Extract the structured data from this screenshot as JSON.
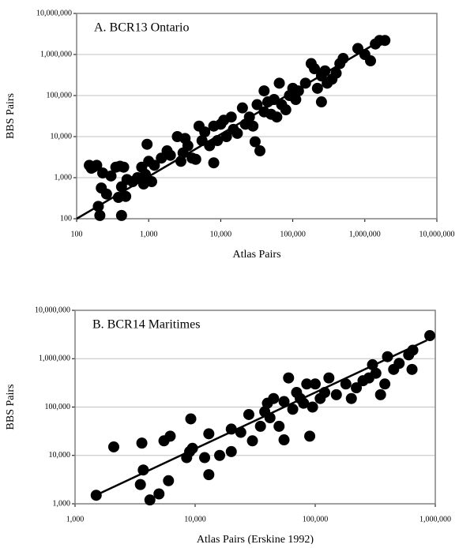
{
  "chart_data": [
    {
      "type": "scatter",
      "title": "A.  BCR13 Ontario",
      "x_label": "Atlas Pairs",
      "y_label": "BBS Pairs",
      "log_x": true,
      "log_y": true,
      "grid": true,
      "color": "#000000",
      "xlim": [
        100,
        10000000
      ],
      "ylim": [
        100,
        10000000
      ],
      "xticks": [
        100,
        {
          "value": 1000,
          "label": "1,000"
        },
        {
          "value": 10000,
          "label": "10,000"
        },
        {
          "value": 100000,
          "label": "100,000"
        },
        {
          "value": 1000000,
          "label": "1,000,000"
        },
        {
          "value": 10000000,
          "label": "10,000,000"
        }
      ],
      "yticks": [
        100,
        {
          "value": 1000,
          "label": "1,000"
        },
        {
          "value": 10000,
          "label": "10,000"
        },
        {
          "value": 100000,
          "label": "100,000"
        },
        {
          "value": 1000000,
          "label": "1,000,000"
        },
        {
          "value": 10000000,
          "label": "10,000,000"
        }
      ],
      "x": [
        150,
        170,
        190,
        160,
        200,
        220,
        210,
        230,
        260,
        300,
        350,
        400,
        420,
        380,
        450,
        420,
        500,
        480,
        600,
        700,
        800,
        900,
        950,
        1000,
        850,
        1100,
        1200,
        1500,
        1800,
        2000,
        2500,
        2800,
        3000,
        3200,
        3500,
        4000,
        4500,
        5000,
        5500,
        6000,
        7000,
        8000,
        8000,
        9000,
        10000,
        11000,
        12000,
        14000,
        15000,
        17000,
        20000,
        22000,
        25000,
        28000,
        30000,
        32000,
        35000,
        40000,
        40000,
        45000,
        50000,
        55000,
        60000,
        65000,
        70000,
        80000,
        90000,
        100000,
        110000,
        120000,
        150000,
        180000,
        200000,
        220000,
        250000,
        250000,
        280000,
        300000,
        350000,
        400000,
        450000,
        500000,
        800000,
        1000000,
        1200000,
        1400000,
        1600000,
        1900000
      ],
      "y": [
        2000,
        1800,
        2000,
        1700,
        200,
        560,
        120,
        1300,
        400,
        1100,
        1800,
        1900,
        120,
        330,
        1800,
        600,
        900,
        350,
        800,
        1000,
        1800,
        1200,
        6500,
        2500,
        700,
        800,
        2000,
        3000,
        4500,
        3500,
        10000,
        2500,
        4000,
        9000,
        6000,
        3000,
        2800,
        18000,
        8000,
        13000,
        6000,
        2300,
        18000,
        8000,
        20000,
        25000,
        10000,
        30000,
        15000,
        12000,
        50000,
        20000,
        30000,
        18000,
        7500,
        60000,
        4500,
        130000,
        40000,
        70000,
        35000,
        80000,
        30000,
        200000,
        60000,
        45000,
        100000,
        150000,
        80000,
        130000,
        200000,
        600000,
        450000,
        150000,
        70000,
        300000,
        400000,
        200000,
        250000,
        350000,
        600000,
        800000,
        1400000,
        1000000,
        700000,
        1800000,
        2200000,
        2200000
      ],
      "fit": {
        "x": [
          100,
          1600000
        ],
        "y": [
          100,
          2100000
        ]
      }
    },
    {
      "type": "scatter",
      "title": "B.  BCR14 Maritimes",
      "x_label": "Atlas Pairs (Erskine 1992)",
      "y_label": "BBS Pairs",
      "log_x": true,
      "log_y": true,
      "grid": true,
      "color": "#000000",
      "xlim": [
        1000,
        1000000
      ],
      "ylim": [
        1000,
        10000000
      ],
      "xticks": [
        {
          "value": 1000,
          "label": "1,000"
        },
        {
          "value": 10000,
          "label": "10,000"
        },
        {
          "value": 100000,
          "label": "100,000"
        },
        {
          "value": 1000000,
          "label": "1,000,000"
        }
      ],
      "yticks": [
        {
          "value": 1000,
          "label": "1,000"
        },
        {
          "value": 10000,
          "label": "10,000"
        },
        {
          "value": 100000,
          "label": "100,000"
        },
        {
          "value": 1000000,
          "label": "1,000,000"
        },
        {
          "value": 10000000,
          "label": "10,000,000"
        }
      ],
      "x": [
        1500,
        2100,
        3500,
        3600,
        3700,
        4200,
        5000,
        5500,
        6000,
        6200,
        8500,
        9000,
        9200,
        9500,
        12000,
        13000,
        13000,
        16000,
        20000,
        20000,
        24000,
        28000,
        30000,
        35000,
        38000,
        40000,
        42000,
        45000,
        50000,
        55000,
        55000,
        60000,
        65000,
        70000,
        75000,
        80000,
        85000,
        90000,
        95000,
        100000,
        110000,
        120000,
        130000,
        150000,
        180000,
        200000,
        220000,
        250000,
        280000,
        300000,
        320000,
        350000,
        380000,
        400000,
        450000,
        500000,
        600000,
        650000,
        640000,
        900000
      ],
      "y": [
        1500,
        15000,
        2500,
        18000,
        5000,
        1200,
        1600,
        20000,
        3000,
        25000,
        9000,
        12000,
        57000,
        14000,
        9000,
        28000,
        4000,
        10000,
        12000,
        35000,
        30000,
        70000,
        20000,
        40000,
        80000,
        120000,
        60000,
        150000,
        40000,
        130000,
        21000,
        400000,
        90000,
        200000,
        150000,
        120000,
        300000,
        25000,
        100000,
        300000,
        150000,
        200000,
        400000,
        180000,
        300000,
        150000,
        250000,
        350000,
        400000,
        750000,
        500000,
        180000,
        300000,
        1100000,
        600000,
        800000,
        1200000,
        1500000,
        600000,
        3000000
      ],
      "fit": {
        "x": [
          1400,
          850000
        ],
        "y": [
          1400,
          2400000
        ]
      }
    }
  ]
}
